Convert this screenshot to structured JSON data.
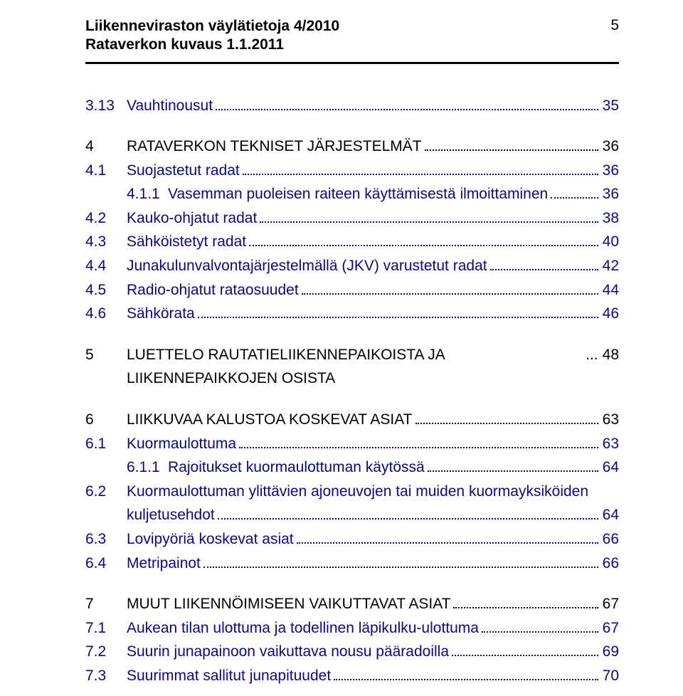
{
  "header": {
    "title_line1": "Liikenneviraston väylätietoja 4/2010",
    "title_line2": "Rataverkon kuvaus 1.1.2011",
    "page_number": "5"
  },
  "toc": [
    {
      "num": "3.13",
      "text": "Vauhtinousut",
      "page": "35",
      "color": "blue",
      "indent": 0
    },
    {
      "num": "4",
      "text": "RATAVERKON TEKNISET JÄRJESTELMÄT",
      "page": "36",
      "color": "black",
      "indent": 0,
      "gap": true
    },
    {
      "num": "4.1",
      "text": "Suojastetut radat",
      "page": "36",
      "color": "blue",
      "indent": 0
    },
    {
      "num": "4.1.1",
      "text": "Vasemman puoleisen raiteen käyttämisestä ilmoittaminen",
      "page": "36",
      "color": "blue",
      "indent": 1
    },
    {
      "num": "4.2",
      "text": "Kauko-ohjatut radat",
      "page": "38",
      "color": "blue",
      "indent": 0
    },
    {
      "num": "4.3",
      "text": "Sähköistetyt radat",
      "page": "40",
      "color": "blue",
      "indent": 0
    },
    {
      "num": "4.4",
      "text": "Junakulunvalvontajärjestelmällä (JKV) varustetut radat",
      "page": "42",
      "color": "blue",
      "indent": 0
    },
    {
      "num": "4.5",
      "text": "Radio-ohjatut rataosuudet",
      "page": "44",
      "color": "blue",
      "indent": 0
    },
    {
      "num": "4.6",
      "text": "Sähkörata",
      "page": "46",
      "color": "blue",
      "indent": 0
    },
    {
      "num": "5",
      "text": "LUETTELO RAUTATIELIIKENNEPAIKOISTA JA LIIKENNEPAIKKOJEN OSISTA",
      "page": "48",
      "color": "black",
      "indent": 0,
      "gap": true,
      "nodots": true
    },
    {
      "num": "6",
      "text": "LIIKKUVAA KALUSTOA KOSKEVAT ASIAT",
      "page": "63",
      "color": "black",
      "indent": 0,
      "gap": true
    },
    {
      "num": "6.1",
      "text": "Kuormaulottuma",
      "page": "63",
      "color": "blue",
      "indent": 0
    },
    {
      "num": "6.1.1",
      "text": "Rajoitukset kuormaulottuman käytössä",
      "page": "64",
      "color": "blue",
      "indent": 1
    },
    {
      "num": "6.2",
      "text": "Kuormaulottuman ylittävien ajoneuvojen tai muiden kuormayksiköiden",
      "text2": "kuljetusehdot",
      "page": "64",
      "color": "blue",
      "indent": 0
    },
    {
      "num": "6.3",
      "text": "Lovipyöriä koskevat asiat",
      "page": "66",
      "color": "blue",
      "indent": 0
    },
    {
      "num": "6.4",
      "text": "Metripainot",
      "page": "66",
      "color": "blue",
      "indent": 0
    },
    {
      "num": "7",
      "text": "MUUT LIIKENNÖIMISEEN VAIKUTTAVAT ASIAT",
      "page": "67",
      "color": "black",
      "indent": 0,
      "gap": true
    },
    {
      "num": "7.1",
      "text": "Aukean tilan ulottuma ja todellinen läpikulku-ulottuma",
      "page": "67",
      "color": "blue",
      "indent": 0
    },
    {
      "num": "7.2",
      "text": "Suurin junapainoon vaikuttava nousu pääradoilla",
      "page": "69",
      "color": "blue",
      "indent": 0
    },
    {
      "num": "7.3",
      "text": "Suurimmat sallitut junapituudet",
      "page": "70",
      "color": "blue",
      "indent": 0
    }
  ]
}
